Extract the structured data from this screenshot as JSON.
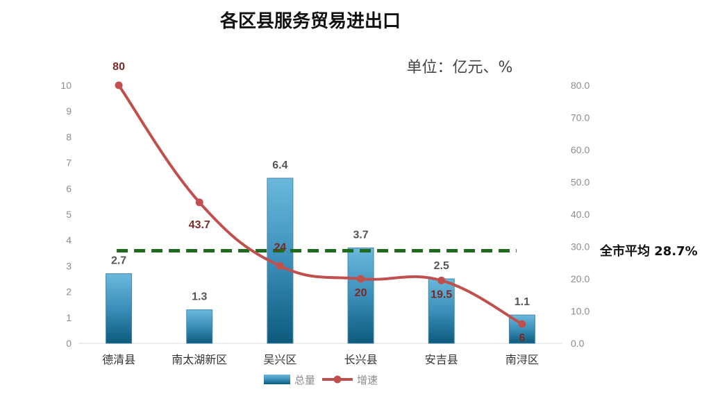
{
  "chart_data": {
    "type": "bar",
    "title": "各区县服务贸易进出口",
    "unit_note": "单位：亿元、%",
    "categories": [
      "德清县",
      "南太湖新区",
      "吴兴区",
      "长兴县",
      "安吉县",
      "南浔区"
    ],
    "series": [
      {
        "name": "总量",
        "type": "bar",
        "axis": "left",
        "values": [
          2.7,
          1.3,
          6.4,
          3.7,
          2.5,
          1.1
        ],
        "labels": [
          "2.7",
          "1.3",
          "6.4",
          "3.7",
          "2.5",
          "1.1"
        ],
        "color": "#4a9cc5"
      },
      {
        "name": "增速",
        "type": "line",
        "axis": "right",
        "values": [
          80,
          43.7,
          24,
          20,
          19.5,
          6
        ],
        "labels": [
          "80",
          "43.7",
          "24",
          "20",
          "19.5",
          "6"
        ],
        "color": "#c0504d"
      }
    ],
    "y_left": {
      "min": 0,
      "max": 10,
      "ticks": [
        "0",
        "1",
        "2",
        "3",
        "4",
        "5",
        "6",
        "7",
        "8",
        "9",
        "10"
      ]
    },
    "y_right": {
      "min": 0,
      "max": 80,
      "ticks": [
        "0.0",
        "10.0",
        "20.0",
        "30.0",
        "40.0",
        "50.0",
        "60.0",
        "70.0",
        "80.0"
      ]
    },
    "reference_line": {
      "value": 28.7,
      "axis": "right",
      "label": "全市平均 28.7%",
      "color": "#1e6b1e",
      "style": "dashed"
    },
    "legend": {
      "position": "bottom",
      "entries": [
        "总量",
        "增速"
      ]
    },
    "grid": false
  }
}
